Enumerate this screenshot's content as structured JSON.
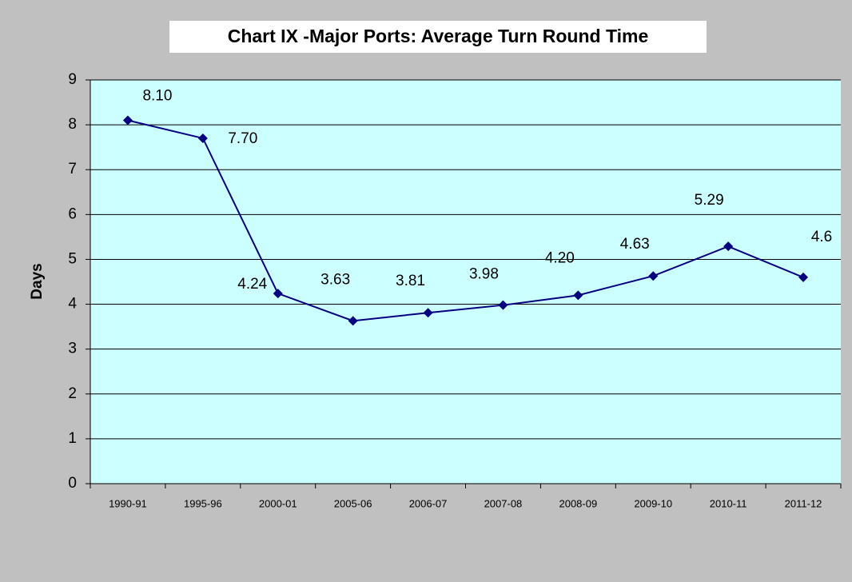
{
  "chart_data": {
    "type": "line",
    "title": "Chart IX -Major Ports: Average Turn Round Time",
    "y_label": "Days",
    "categories": [
      "1990-91",
      "1995-96",
      "2000-01",
      "2005-06",
      "2006-07",
      "2007-08",
      "2008-09",
      "2009-10",
      "2010-11",
      "2011-12"
    ],
    "series": [
      {
        "color": "#000080",
        "values": [
          8.1,
          7.7,
          4.24,
          3.63,
          3.81,
          3.98,
          4.2,
          4.63,
          5.29,
          4.6
        ],
        "value_labels": [
          "8.10",
          "7.70",
          "4.24",
          "3.63",
          "3.81",
          "3.98",
          "4.20",
          "4.63",
          "5.29",
          "4.6"
        ]
      }
    ],
    "ylim": [
      0,
      9
    ],
    "yticks": [
      0,
      1,
      2,
      3,
      4,
      5,
      6,
      7,
      8,
      9
    ],
    "grid": true
  }
}
